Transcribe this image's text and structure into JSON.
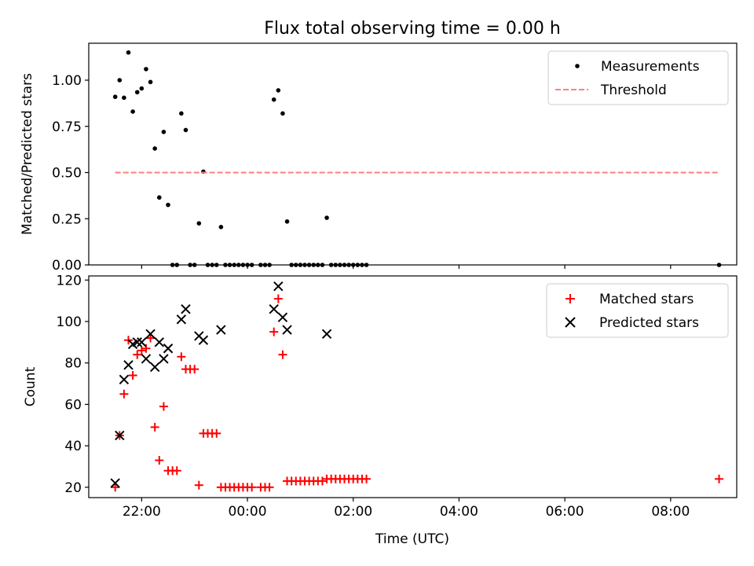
{
  "title": "Flux total observing time = 0.00 h",
  "colors": {
    "measurement": "#000000",
    "threshold": "#ff7f7f",
    "matched": "#ff0000",
    "predicted": "#000000"
  },
  "chart_data": [
    {
      "type": "scatter",
      "ylabel": "Matched/Predicted stars",
      "xlabel": "",
      "xlim": [
        "21:00",
        "09:15"
      ],
      "ylim": [
        0,
        1.2
      ],
      "yticks": [
        "0.00",
        "0.25",
        "0.50",
        "0.75",
        "1.00"
      ],
      "grid": false,
      "legend_position": "top-right",
      "legend": [
        "Measurements",
        "Threshold"
      ],
      "series": [
        {
          "name": "Measurements",
          "marker": "dot",
          "points": [
            [
              "21:30",
              0.91
            ],
            [
              "21:35",
              1.0
            ],
            [
              "21:40",
              0.905
            ],
            [
              "21:45",
              1.15
            ],
            [
              "21:50",
              0.83
            ],
            [
              "21:55",
              0.935
            ],
            [
              "22:00",
              0.955
            ],
            [
              "22:05",
              1.06
            ],
            [
              "22:10",
              0.99
            ],
            [
              "22:15",
              0.63
            ],
            [
              "22:20",
              0.365
            ],
            [
              "22:25",
              0.72
            ],
            [
              "22:30",
              0.325
            ],
            [
              "22:35",
              0.0
            ],
            [
              "22:40",
              0.0
            ],
            [
              "22:45",
              0.82
            ],
            [
              "22:50",
              0.73
            ],
            [
              "22:55",
              0.0
            ],
            [
              "23:00",
              0.0
            ],
            [
              "23:05",
              0.225
            ],
            [
              "23:10",
              0.505
            ],
            [
              "23:15",
              0.0
            ],
            [
              "23:20",
              0.0
            ],
            [
              "23:25",
              0.0
            ],
            [
              "23:30",
              0.205
            ],
            [
              "23:35",
              0.0
            ],
            [
              "23:40",
              0.0
            ],
            [
              "23:45",
              0.0
            ],
            [
              "23:50",
              0.0
            ],
            [
              "23:55",
              0.0
            ],
            [
              "00:00",
              0.0
            ],
            [
              "00:05",
              0.0
            ],
            [
              "00:15",
              0.0
            ],
            [
              "00:20",
              0.0
            ],
            [
              "00:25",
              0.0
            ],
            [
              "00:30",
              0.895
            ],
            [
              "00:35",
              0.945
            ],
            [
              "00:40",
              0.82
            ],
            [
              "00:45",
              0.235
            ],
            [
              "00:50",
              0.0
            ],
            [
              "00:55",
              0.0
            ],
            [
              "01:00",
              0.0
            ],
            [
              "01:05",
              0.0
            ],
            [
              "01:10",
              0.0
            ],
            [
              "01:15",
              0.0
            ],
            [
              "01:20",
              0.0
            ],
            [
              "01:25",
              0.0
            ],
            [
              "01:30",
              0.255
            ],
            [
              "01:35",
              0.0
            ],
            [
              "01:40",
              0.0
            ],
            [
              "01:45",
              0.0
            ],
            [
              "01:50",
              0.0
            ],
            [
              "01:55",
              0.0
            ],
            [
              "02:00",
              0.0
            ],
            [
              "02:05",
              0.0
            ],
            [
              "02:10",
              0.0
            ],
            [
              "02:15",
              0.0
            ],
            [
              "08:55",
              0.0
            ]
          ]
        },
        {
          "name": "Threshold",
          "style": "dashed-line",
          "points": [
            [
              "21:30",
              0.5
            ],
            [
              "08:55",
              0.5
            ]
          ]
        }
      ]
    },
    {
      "type": "scatter",
      "ylabel": "Count",
      "xlabel": "Time (UTC)",
      "xlim": [
        "21:00",
        "09:15"
      ],
      "ylim": [
        15,
        122
      ],
      "yticks": [
        "20",
        "40",
        "60",
        "80",
        "100",
        "120"
      ],
      "xticks": [
        "22:00",
        "00:00",
        "02:00",
        "04:00",
        "06:00",
        "08:00"
      ],
      "grid": false,
      "legend_position": "top-right",
      "legend": [
        "Matched stars",
        "Predicted stars"
      ],
      "series": [
        {
          "name": "Matched stars",
          "marker": "plus",
          "points": [
            [
              "21:30",
              20
            ],
            [
              "21:35",
              45
            ],
            [
              "21:40",
              65
            ],
            [
              "21:45",
              91
            ],
            [
              "21:50",
              74
            ],
            [
              "21:55",
              84
            ],
            [
              "22:00",
              86
            ],
            [
              "22:05",
              87
            ],
            [
              "22:10",
              92
            ],
            [
              "22:15",
              49
            ],
            [
              "22:20",
              33
            ],
            [
              "22:25",
              59
            ],
            [
              "22:30",
              28
            ],
            [
              "22:35",
              28
            ],
            [
              "22:40",
              28
            ],
            [
              "22:45",
              83
            ],
            [
              "22:50",
              77
            ],
            [
              "22:55",
              77
            ],
            [
              "23:00",
              77
            ],
            [
              "23:05",
              21
            ],
            [
              "23:10",
              46
            ],
            [
              "23:15",
              46
            ],
            [
              "23:20",
              46
            ],
            [
              "23:25",
              46
            ],
            [
              "23:30",
              20
            ],
            [
              "23:35",
              20
            ],
            [
              "23:40",
              20
            ],
            [
              "23:45",
              20
            ],
            [
              "23:50",
              20
            ],
            [
              "23:55",
              20
            ],
            [
              "00:00",
              20
            ],
            [
              "00:05",
              20
            ],
            [
              "00:15",
              20
            ],
            [
              "00:20",
              20
            ],
            [
              "00:25",
              20
            ],
            [
              "00:30",
              95
            ],
            [
              "00:35",
              111
            ],
            [
              "00:40",
              84
            ],
            [
              "00:45",
              23
            ],
            [
              "00:50",
              23
            ],
            [
              "00:55",
              23
            ],
            [
              "01:00",
              23
            ],
            [
              "01:05",
              23
            ],
            [
              "01:10",
              23
            ],
            [
              "01:15",
              23
            ],
            [
              "01:20",
              23
            ],
            [
              "01:25",
              23
            ],
            [
              "01:30",
              24
            ],
            [
              "01:35",
              24
            ],
            [
              "01:40",
              24
            ],
            [
              "01:45",
              24
            ],
            [
              "01:50",
              24
            ],
            [
              "01:55",
              24
            ],
            [
              "02:00",
              24
            ],
            [
              "02:05",
              24
            ],
            [
              "02:10",
              24
            ],
            [
              "02:15",
              24
            ],
            [
              "08:55",
              24
            ]
          ]
        },
        {
          "name": "Predicted stars",
          "marker": "x",
          "points": [
            [
              "21:30",
              22
            ],
            [
              "21:35",
              45
            ],
            [
              "21:40",
              72
            ],
            [
              "21:45",
              79
            ],
            [
              "21:50",
              89
            ],
            [
              "21:55",
              90
            ],
            [
              "22:00",
              90
            ],
            [
              "22:05",
              82
            ],
            [
              "22:10",
              94
            ],
            [
              "22:15",
              78
            ],
            [
              "22:20",
              90
            ],
            [
              "22:25",
              82
            ],
            [
              "22:30",
              87
            ],
            [
              "22:45",
              101
            ],
            [
              "22:50",
              106
            ],
            [
              "23:05",
              93
            ],
            [
              "23:10",
              91
            ],
            [
              "23:30",
              96
            ],
            [
              "00:30",
              106
            ],
            [
              "00:35",
              117
            ],
            [
              "00:40",
              102
            ],
            [
              "00:45",
              96
            ],
            [
              "01:30",
              94
            ]
          ]
        }
      ]
    }
  ]
}
